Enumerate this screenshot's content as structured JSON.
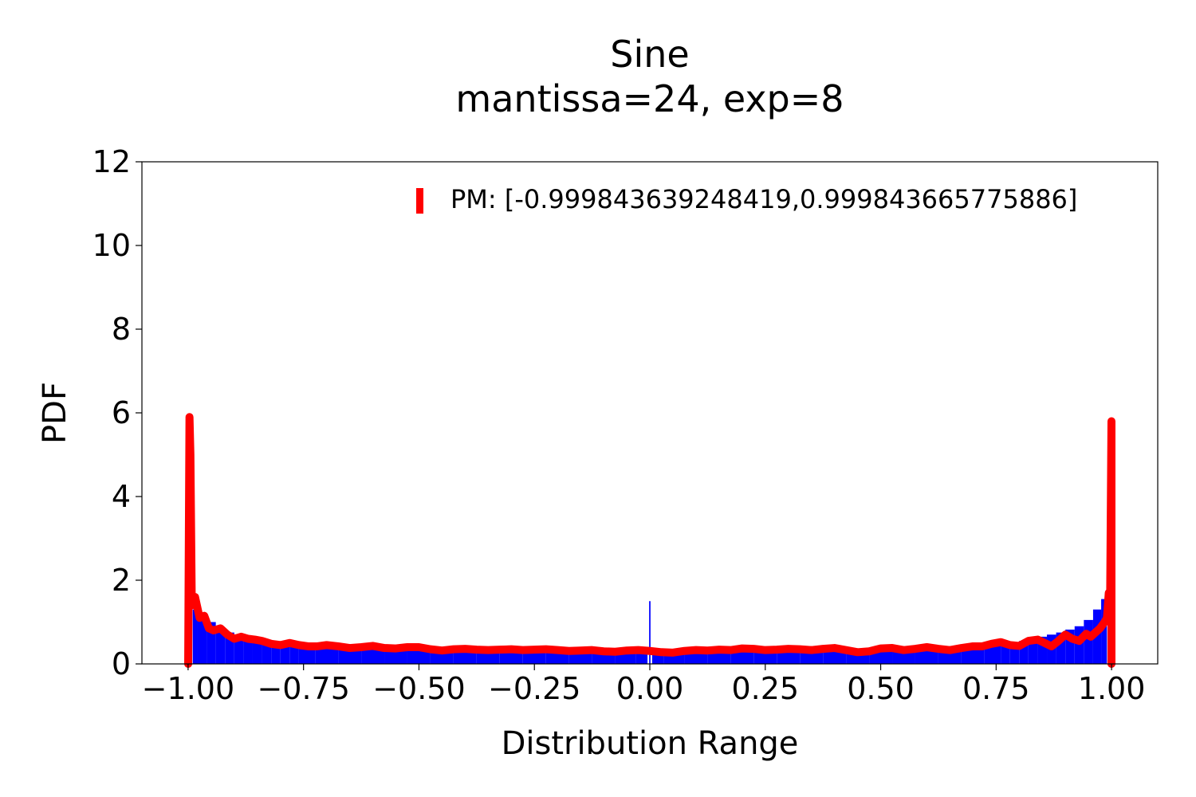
{
  "chart_data": {
    "type": "bar",
    "title": "Sine",
    "subtitle": "mantissa=24, exp=8",
    "xlabel": "Distribution Range",
    "ylabel": "PDF",
    "xlim": [
      -1.1,
      1.1
    ],
    "ylim": [
      0,
      12
    ],
    "xticks": [
      -1.0,
      -0.75,
      -0.5,
      -0.25,
      0.0,
      0.25,
      0.5,
      0.75,
      1.0
    ],
    "xtick_labels": [
      "−1.00",
      "−0.75",
      "−0.50",
      "−0.25",
      "0.00",
      "0.25",
      "0.50",
      "0.75",
      "1.00"
    ],
    "yticks": [
      0,
      2,
      4,
      6,
      8,
      10,
      12
    ],
    "ytick_labels": [
      "0",
      "2",
      "4",
      "6",
      "8",
      "10",
      "12"
    ],
    "grid": false,
    "legend": {
      "placement": "top-right",
      "entries": [
        "PM: [-0.999843639248419,0.999843665775886]"
      ]
    },
    "colors": {
      "histogram": "#0000ff",
      "pm_curve": "#ff0000"
    },
    "histogram": {
      "name": "histogram",
      "x": [
        -0.99,
        -0.97,
        -0.95,
        -0.93,
        -0.91,
        -0.89,
        -0.87,
        -0.85,
        -0.83,
        -0.81,
        -0.79,
        -0.77,
        -0.75,
        -0.7,
        -0.65,
        -0.6,
        -0.55,
        -0.5,
        -0.45,
        -0.4,
        -0.35,
        -0.3,
        -0.25,
        -0.2,
        -0.15,
        -0.1,
        -0.05,
        -0.01,
        0.0,
        0.01,
        0.05,
        0.1,
        0.15,
        0.2,
        0.25,
        0.3,
        0.35,
        0.4,
        0.45,
        0.5,
        0.55,
        0.6,
        0.65,
        0.7,
        0.75,
        0.77,
        0.79,
        0.81,
        0.83,
        0.85,
        0.87,
        0.89,
        0.91,
        0.93,
        0.95,
        0.97,
        0.985
      ],
      "values": [
        1.3,
        1.2,
        1.0,
        0.85,
        0.75,
        0.7,
        0.62,
        0.58,
        0.55,
        0.52,
        0.5,
        0.47,
        0.45,
        0.42,
        0.38,
        0.36,
        0.34,
        0.32,
        0.31,
        0.3,
        0.3,
        0.29,
        0.29,
        0.28,
        0.28,
        0.28,
        0.3,
        0.32,
        1.5,
        0.33,
        0.29,
        0.28,
        0.28,
        0.29,
        0.29,
        0.3,
        0.3,
        0.31,
        0.32,
        0.33,
        0.35,
        0.37,
        0.4,
        0.43,
        0.46,
        0.48,
        0.52,
        0.55,
        0.6,
        0.65,
        0.7,
        0.75,
        0.82,
        0.9,
        1.05,
        1.3,
        1.55
      ]
    },
    "series": [
      {
        "name": "PM: [-0.999843639248419,0.999843665775886]",
        "x": [
          -0.9998,
          -0.997,
          -0.995,
          -0.992,
          -0.985,
          -0.975,
          -0.965,
          -0.955,
          -0.945,
          -0.93,
          -0.915,
          -0.9,
          -0.885,
          -0.87,
          -0.855,
          -0.84,
          -0.82,
          -0.8,
          -0.78,
          -0.76,
          -0.74,
          -0.72,
          -0.7,
          -0.675,
          -0.65,
          -0.625,
          -0.6,
          -0.575,
          -0.55,
          -0.525,
          -0.5,
          -0.475,
          -0.45,
          -0.425,
          -0.4,
          -0.375,
          -0.35,
          -0.325,
          -0.3,
          -0.275,
          -0.25,
          -0.225,
          -0.2,
          -0.175,
          -0.15,
          -0.125,
          -0.1,
          -0.075,
          -0.05,
          -0.025,
          0.0,
          0.025,
          0.05,
          0.075,
          0.1,
          0.125,
          0.15,
          0.175,
          0.2,
          0.225,
          0.25,
          0.275,
          0.3,
          0.325,
          0.35,
          0.375,
          0.4,
          0.425,
          0.45,
          0.475,
          0.5,
          0.525,
          0.55,
          0.575,
          0.6,
          0.625,
          0.65,
          0.675,
          0.7,
          0.72,
          0.74,
          0.76,
          0.78,
          0.8,
          0.82,
          0.84,
          0.855,
          0.87,
          0.885,
          0.9,
          0.915,
          0.93,
          0.945,
          0.955,
          0.965,
          0.975,
          0.985,
          0.99,
          0.994,
          0.997,
          0.9998
        ],
        "y": [
          0.0,
          5.9,
          5.0,
          1.4,
          1.6,
          1.1,
          1.15,
          0.85,
          0.8,
          0.85,
          0.7,
          0.6,
          0.65,
          0.6,
          0.58,
          0.55,
          0.48,
          0.45,
          0.5,
          0.45,
          0.42,
          0.42,
          0.45,
          0.42,
          0.38,
          0.4,
          0.43,
          0.38,
          0.37,
          0.4,
          0.4,
          0.35,
          0.32,
          0.35,
          0.36,
          0.34,
          0.33,
          0.34,
          0.35,
          0.33,
          0.34,
          0.35,
          0.33,
          0.31,
          0.32,
          0.33,
          0.3,
          0.29,
          0.32,
          0.33,
          0.31,
          0.28,
          0.27,
          0.31,
          0.33,
          0.32,
          0.34,
          0.33,
          0.37,
          0.36,
          0.33,
          0.34,
          0.36,
          0.35,
          0.33,
          0.36,
          0.38,
          0.33,
          0.28,
          0.3,
          0.37,
          0.38,
          0.33,
          0.36,
          0.4,
          0.36,
          0.33,
          0.38,
          0.42,
          0.42,
          0.48,
          0.52,
          0.45,
          0.43,
          0.55,
          0.58,
          0.5,
          0.42,
          0.55,
          0.7,
          0.6,
          0.55,
          0.72,
          0.65,
          0.75,
          0.85,
          1.0,
          1.1,
          1.7,
          1.6,
          5.8
        ]
      }
    ]
  }
}
